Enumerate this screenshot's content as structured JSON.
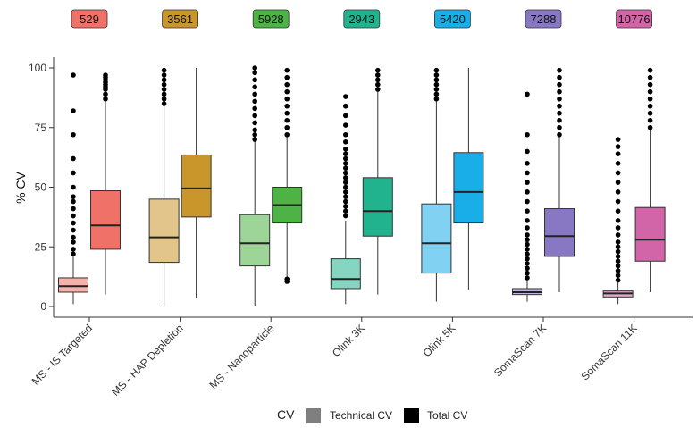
{
  "chart_data": {
    "type": "boxplot",
    "ylabel": "% CV",
    "ylim": [
      0,
      100
    ],
    "yticks": [
      0,
      25,
      50,
      75,
      100
    ],
    "grid": false,
    "legend_placement": "bottom",
    "legend": {
      "title": "CV",
      "items": [
        {
          "label": "Technical CV",
          "color": "#7f7f7f"
        },
        {
          "label": "Total CV",
          "color": "#000000"
        }
      ]
    },
    "categories": [
      {
        "label": "MS - IS Targeted",
        "count": "529",
        "color": "#f07167",
        "technical": {
          "q1": 6,
          "median": 8.5,
          "q3": 12,
          "whisker_low": 1,
          "whisker_high": 21,
          "outliers": [
            22,
            24,
            27,
            29,
            32,
            35,
            38,
            41,
            44,
            46,
            50,
            56,
            62,
            72,
            82,
            97
          ]
        },
        "total": {
          "q1": 24,
          "median": 34,
          "q3": 48.5,
          "whisker_low": 5,
          "whisker_high": 86,
          "outliers": [
            87,
            89,
            91,
            92,
            93,
            94,
            95,
            96,
            97
          ]
        }
      },
      {
        "label": "MS - HAP Depletion",
        "count": "3561",
        "color": "#c8962a",
        "technical": {
          "q1": 18.5,
          "median": 29,
          "q3": 45,
          "whisker_low": 0,
          "whisker_high": 84,
          "outliers": [
            85,
            87,
            89,
            91,
            93,
            95,
            97,
            99
          ]
        },
        "total": {
          "q1": 37.5,
          "median": 49.5,
          "q3": 63.5,
          "whisker_low": 3.5,
          "whisker_high": 100,
          "outliers": []
        }
      },
      {
        "label": "MS - Nanoparticle",
        "count": "5928",
        "color": "#4cb344",
        "technical": {
          "q1": 17,
          "median": 26.5,
          "q3": 38.5,
          "whisker_low": 0,
          "whisker_high": 69,
          "outliers": [
            70,
            72,
            74,
            77,
            80,
            83,
            86,
            89,
            92,
            95,
            98,
            100
          ]
        },
        "total": {
          "q1": 35,
          "median": 42.5,
          "q3": 50,
          "whisker_low": 12,
          "whisker_high": 71,
          "outliers": [
            10.5,
            11.5,
            72,
            75,
            78,
            81,
            84,
            87,
            90,
            93,
            96,
            99
          ]
        }
      },
      {
        "label": "Olink 3K",
        "count": "2943",
        "color": "#21b28e",
        "technical": {
          "q1": 7.5,
          "median": 11.5,
          "q3": 20,
          "whisker_low": 1,
          "whisker_high": 36,
          "outliers": [
            38,
            40,
            42,
            44,
            46,
            48,
            50,
            52,
            54,
            56,
            58,
            60,
            62,
            64,
            66,
            69,
            72,
            76,
            80,
            84,
            88
          ]
        },
        "total": {
          "q1": 29.5,
          "median": 40,
          "q3": 54,
          "whisker_low": 5,
          "whisker_high": 90,
          "outliers": [
            91,
            93,
            95,
            97,
            99
          ]
        }
      },
      {
        "label": "Olink 5K",
        "count": "5420",
        "color": "#1aaee8",
        "technical": {
          "q1": 14,
          "median": 26.5,
          "q3": 43,
          "whisker_low": 2,
          "whisker_high": 86,
          "outliers": [
            87,
            89,
            91,
            93,
            95,
            97,
            99
          ]
        },
        "total": {
          "q1": 35,
          "median": 48,
          "q3": 64.5,
          "whisker_low": 7,
          "whisker_high": 100,
          "outliers": []
        }
      },
      {
        "label": "SomaScan 7K",
        "count": "7288",
        "color": "#8878c4",
        "technical": {
          "q1": 5,
          "median": 6,
          "q3": 7.5,
          "whisker_low": 2,
          "whisker_high": 11,
          "outliers": [
            12,
            14,
            16,
            18,
            20,
            22,
            24,
            26,
            28,
            30,
            33,
            36,
            40,
            44,
            48,
            52,
            56,
            60,
            65,
            72,
            89
          ]
        },
        "total": {
          "q1": 21,
          "median": 29.5,
          "q3": 41,
          "whisker_low": 6,
          "whisker_high": 71,
          "outliers": [
            72,
            75,
            78,
            81,
            84,
            87,
            90,
            93,
            96,
            99
          ]
        }
      },
      {
        "label": "SomaScan 11K",
        "count": "10776",
        "color": "#d264a8",
        "technical": {
          "q1": 4,
          "median": 5.5,
          "q3": 6.5,
          "whisker_low": 1,
          "whisker_high": 10,
          "outliers": [
            11,
            13,
            15,
            17,
            19,
            21,
            23,
            25,
            27,
            30,
            33,
            36,
            40,
            44,
            48,
            52,
            56,
            60,
            64,
            67,
            70
          ]
        },
        "total": {
          "q1": 19,
          "median": 28,
          "q3": 41.5,
          "whisker_low": 6,
          "whisker_high": 74,
          "outliers": [
            75,
            78,
            81,
            84,
            87,
            90,
            93,
            96,
            99
          ]
        }
      }
    ]
  }
}
